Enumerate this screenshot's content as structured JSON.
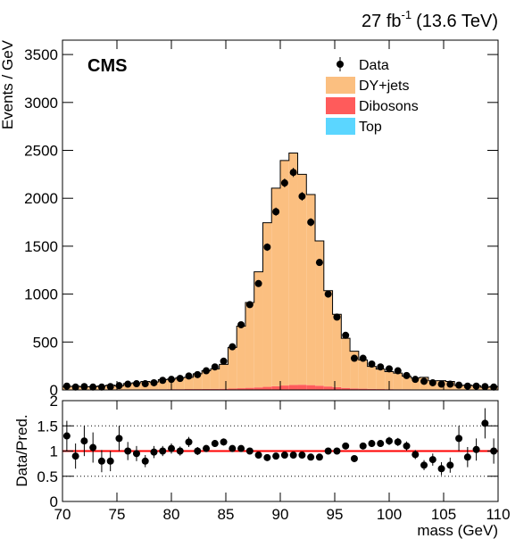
{
  "chart_data": [
    {
      "type": "histogram",
      "lumi": "27 fb",
      "lumi_exponent": "-1",
      "energy": "(13.6 TeV)",
      "experiment": "CMS",
      "ylabel": "Events / GeV",
      "xlim": [
        70,
        110
      ],
      "ylim": [
        0,
        3650
      ],
      "yticks": [
        0,
        500,
        1000,
        1500,
        2000,
        2500,
        3000,
        3500
      ],
      "stacked": true,
      "legend": "top-right",
      "bins": [
        70,
        70.8,
        71.6,
        72.4,
        73.2,
        74,
        74.8,
        75.6,
        76.4,
        77.2,
        78,
        78.8,
        79.6,
        80.4,
        81.2,
        82,
        82.8,
        83.6,
        84.4,
        85.2,
        86,
        86.8,
        87.6,
        88.4,
        89.2,
        90,
        90.8,
        91.6,
        92.4,
        93.2,
        94,
        94.8,
        95.6,
        96.4,
        97.2,
        98,
        98.8,
        99.6,
        100.4,
        101.2,
        102,
        102.8,
        103.6,
        104.4,
        105.2,
        106,
        106.8,
        107.6,
        108.4,
        109.2,
        110
      ],
      "series": [
        {
          "name": "Top",
          "color": "#5bd6ff",
          "values": [
            3,
            3,
            3,
            3,
            3,
            3,
            3,
            3,
            3,
            3,
            3,
            3,
            3,
            3,
            3,
            3,
            3,
            3,
            3,
            3,
            4,
            4,
            4,
            4,
            4,
            4,
            4,
            4,
            4,
            4,
            4,
            4,
            3,
            3,
            3,
            3,
            3,
            3,
            3,
            3,
            3,
            3,
            3,
            3,
            3,
            3,
            3,
            3,
            3,
            3
          ]
        },
        {
          "name": "Dibosons",
          "color": "#ff5b5b",
          "values": [
            2,
            2,
            2,
            2,
            2,
            3,
            3,
            3,
            3,
            4,
            4,
            4,
            5,
            5,
            6,
            6,
            7,
            8,
            9,
            11,
            14,
            18,
            22,
            28,
            35,
            42,
            48,
            50,
            46,
            40,
            32,
            25,
            18,
            13,
            10,
            8,
            6,
            5,
            4,
            4,
            3,
            3,
            3,
            2,
            2,
            2,
            2,
            2,
            2,
            2
          ]
        },
        {
          "name": "DY+jets",
          "color": "#fbbf80",
          "values": [
            31,
            33,
            29,
            28,
            37,
            44,
            36,
            60,
            68,
            81,
            76,
            100,
            105,
            120,
            123,
            160,
            190,
            209,
            254,
            429,
            648,
            890,
            1207,
            1713,
            2067,
            2348,
            2420,
            2196,
            1989,
            1511,
            1000,
            760,
            518,
            388,
            300,
            235,
            209,
            183,
            169,
            136,
            118,
            125,
            90,
            92,
            83,
            40,
            45,
            39,
            23,
            30
          ]
        }
      ],
      "data": {
        "name": "Data",
        "color": "#000000",
        "values": [
          40,
          30,
          35,
          30,
          30,
          35,
          45,
          60,
          65,
          65,
          75,
          100,
          110,
          120,
          145,
          160,
          200,
          240,
          300,
          450,
          680,
          890,
          1110,
          1490,
          1860,
          2160,
          2270,
          2020,
          1750,
          1330,
          1000,
          760,
          570,
          330,
          330,
          270,
          240,
          220,
          200,
          150,
          110,
          90,
          75,
          60,
          60,
          50,
          40,
          40,
          35,
          30
        ],
        "errors": [
          6,
          5,
          6,
          5,
          5,
          6,
          7,
          8,
          8,
          8,
          9,
          10,
          10,
          11,
          12,
          13,
          14,
          15,
          17,
          21,
          26,
          30,
          33,
          39,
          43,
          46,
          48,
          45,
          42,
          36,
          32,
          28,
          24,
          18,
          18,
          16,
          15,
          15,
          14,
          12,
          10,
          9,
          9,
          8,
          8,
          7,
          6,
          6,
          6,
          5
        ]
      }
    },
    {
      "type": "ratio",
      "ylabel": "Data/Pred.",
      "xlabel": "mass (GeV)",
      "xlim": [
        70,
        110
      ],
      "xticks": [
        70,
        75,
        80,
        85,
        90,
        95,
        100,
        105,
        110
      ],
      "ylim": [
        0,
        2
      ],
      "yticks": [
        0,
        0.5,
        1,
        1.5,
        2
      ],
      "grid": true,
      "reference_line": 1,
      "reference_color": "#ff0000",
      "x": [
        70.4,
        71.2,
        72,
        72.8,
        73.6,
        74.4,
        75.2,
        76,
        76.8,
        77.6,
        78.4,
        79.2,
        80,
        80.8,
        81.6,
        82.4,
        83.2,
        84,
        84.8,
        85.6,
        86.4,
        87.2,
        88,
        88.8,
        89.6,
        90.4,
        91.2,
        92,
        92.8,
        93.6,
        94.4,
        95.2,
        96,
        96.8,
        97.6,
        98.4,
        99.2,
        100,
        100.8,
        101.6,
        102.4,
        103.2,
        104,
        104.8,
        105.6,
        106.4,
        107.2,
        108,
        108.8,
        109.6
      ],
      "values": [
        1.3,
        0.9,
        1.2,
        1.07,
        0.8,
        0.8,
        1.25,
        1.0,
        0.95,
        0.8,
        0.98,
        1.0,
        1.05,
        1.0,
        1.18,
        1.0,
        1.05,
        1.15,
        1.18,
        1.05,
        1.05,
        1.0,
        0.92,
        0.87,
        0.9,
        0.92,
        0.92,
        0.92,
        0.88,
        0.88,
        1.0,
        1.0,
        1.1,
        0.85,
        1.1,
        1.15,
        1.15,
        1.2,
        1.18,
        1.1,
        0.93,
        0.72,
        0.83,
        0.65,
        0.72,
        1.25,
        0.88,
        1.03,
        1.55,
        1.0
      ],
      "errors": [
        0.3,
        0.25,
        0.3,
        0.3,
        0.22,
        0.2,
        0.25,
        0.18,
        0.15,
        0.12,
        0.12,
        0.1,
        0.1,
        0.09,
        0.1,
        0.08,
        0.07,
        0.07,
        0.07,
        0.05,
        0.04,
        0.03,
        0.03,
        0.02,
        0.02,
        0.02,
        0.02,
        0.02,
        0.02,
        0.02,
        0.03,
        0.04,
        0.05,
        0.05,
        0.06,
        0.07,
        0.07,
        0.08,
        0.08,
        0.09,
        0.09,
        0.1,
        0.12,
        0.13,
        0.15,
        0.25,
        0.2,
        0.22,
        0.3,
        0.25
      ],
      "color": "#000000"
    }
  ]
}
